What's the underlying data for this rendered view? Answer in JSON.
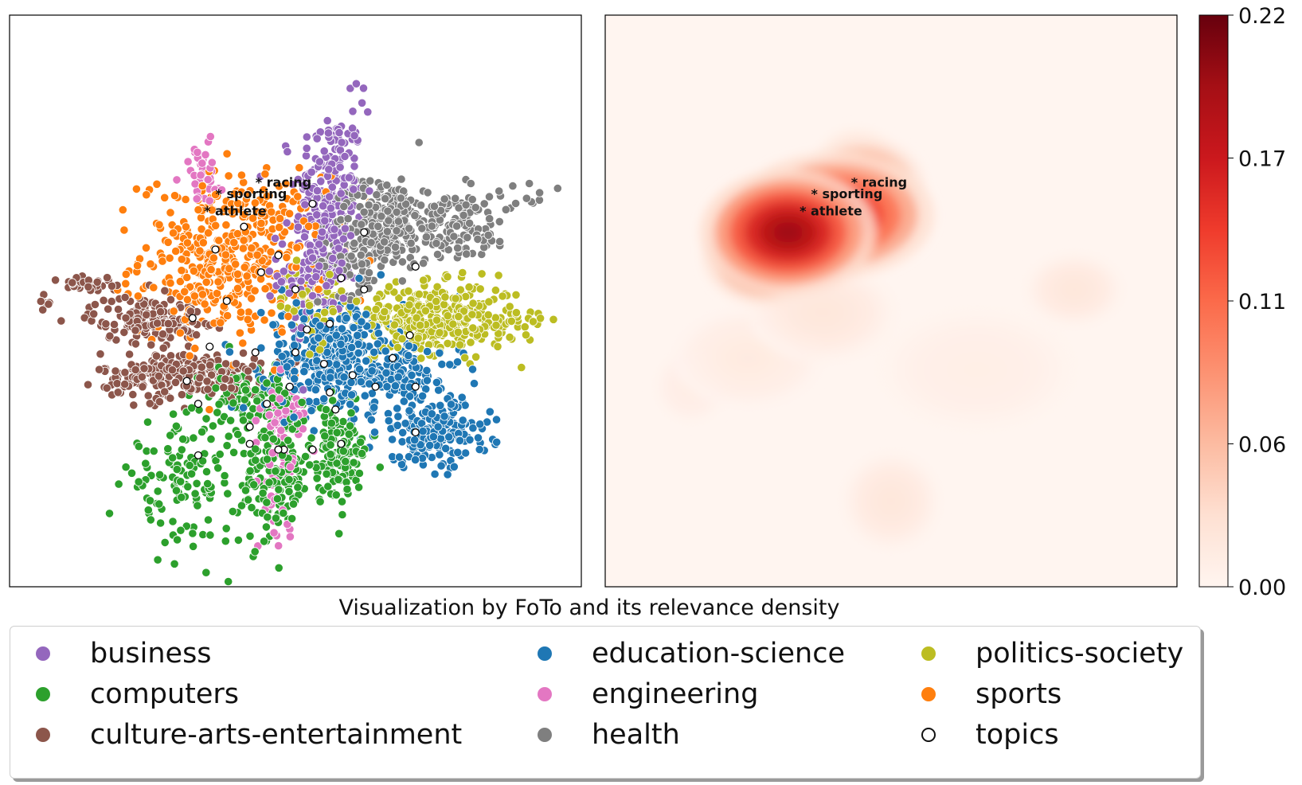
{
  "caption": "Visualization by FoTo and its relevance density",
  "legend": [
    {
      "label": "business",
      "color": "#9467bd",
      "hollow": false
    },
    {
      "label": "computers",
      "color": "#2ca02c",
      "hollow": false
    },
    {
      "label": "culture-arts-entertainment",
      "color": "#8c564b",
      "hollow": false
    },
    {
      "label": "education-science",
      "color": "#1f77b4",
      "hollow": false
    },
    {
      "label": "engineering",
      "color": "#e377c2",
      "hollow": false
    },
    {
      "label": "health",
      "color": "#7f7f7f",
      "hollow": false
    },
    {
      "label": "politics-society",
      "color": "#bcbd22",
      "hollow": false
    },
    {
      "label": "sports",
      "color": "#ff7f0e",
      "hollow": false
    },
    {
      "label": "topics",
      "color": "#ffffff",
      "hollow": true
    }
  ],
  "chart_data": [
    {
      "type": "scatter",
      "title": "",
      "xlabel": "",
      "ylabel": "",
      "axes_visible": false,
      "xlim": [
        0,
        100
      ],
      "ylim": [
        0,
        100
      ],
      "clusters": [
        {
          "name": "business",
          "color": "#9467bd",
          "points": [
            [
              56,
              68,
              3,
              8,
              220
            ],
            [
              53,
              55,
              3,
              5,
              120
            ],
            [
              62,
              86,
              1.5,
              2,
              6
            ]
          ]
        },
        {
          "name": "sports",
          "color": "#ff7f0e",
          "points": [
            [
              39,
              58,
              8,
              7,
              420
            ],
            [
              33,
              51,
              2,
              3,
              30
            ]
          ]
        },
        {
          "name": "health",
          "color": "#7f7f7f",
          "points": [
            [
              65,
              64,
              4,
              4,
              200
            ],
            [
              76,
              63,
              6,
              3,
              160
            ],
            [
              60,
              57,
              3,
              3,
              80
            ],
            [
              88,
              68,
              4,
              2,
              20
            ]
          ]
        },
        {
          "name": "politics-society",
          "color": "#bcbd22",
          "points": [
            [
              75,
              47,
              7,
              3,
              360
            ],
            [
              53,
              50,
              3,
              3,
              60
            ],
            [
              89,
              46,
              2,
              1,
              12
            ]
          ]
        },
        {
          "name": "culture-arts-entertainment",
          "color": "#8c564b",
          "points": [
            [
              24,
              47,
              5,
              2,
              140
            ],
            [
              14,
              53,
              3,
              1,
              30
            ],
            [
              30,
              37,
              7,
              2,
              260
            ],
            [
              6,
              50,
              1,
              1,
              6
            ]
          ]
        },
        {
          "name": "education-science",
          "color": "#1f77b4",
          "points": [
            [
              57,
              40,
              6,
              5,
              360
            ],
            [
              74,
              27,
              5,
              3,
              200
            ],
            [
              69,
              37,
              5,
              2,
              100
            ]
          ]
        },
        {
          "name": "computers",
          "color": "#2ca02c",
          "points": [
            [
              30,
              18,
              5,
              5,
              120
            ],
            [
              46,
              19,
              3,
              6,
              160
            ],
            [
              57,
              23,
              3,
              4,
              150
            ],
            [
              42,
              33,
              4,
              3,
              100
            ]
          ]
        },
        {
          "name": "engineering",
          "color": "#e377c2",
          "points": [
            [
              48,
              30,
              2,
              3,
              60
            ],
            [
              47,
              17,
              1.5,
              4,
              40
            ],
            [
              33,
              73,
              2,
              3,
              40
            ]
          ]
        }
      ],
      "topics": [
        [
          41,
          63
        ],
        [
          53,
          67
        ],
        [
          50,
          52
        ],
        [
          36,
          59
        ],
        [
          47,
          58
        ],
        [
          58,
          54
        ],
        [
          62,
          62
        ],
        [
          71,
          56
        ],
        [
          44,
          55
        ],
        [
          38,
          50
        ],
        [
          32,
          47
        ],
        [
          52,
          45
        ],
        [
          56,
          46
        ],
        [
          62,
          52
        ],
        [
          70,
          44
        ],
        [
          35,
          42
        ],
        [
          43,
          41
        ],
        [
          50,
          41
        ],
        [
          55,
          39
        ],
        [
          60,
          37
        ],
        [
          67,
          40
        ],
        [
          49,
          35
        ],
        [
          31,
          36
        ],
        [
          33,
          32
        ],
        [
          45,
          32
        ],
        [
          56,
          34
        ],
        [
          64,
          35
        ],
        [
          71,
          35
        ],
        [
          42,
          28
        ],
        [
          48,
          24
        ],
        [
          57,
          31
        ],
        [
          71,
          27
        ],
        [
          42,
          25
        ],
        [
          33,
          23
        ],
        [
          47,
          24
        ],
        [
          53,
          24
        ],
        [
          58,
          25
        ]
      ],
      "annotations": [
        {
          "text": "* racing",
          "x": 43,
          "y": 70
        },
        {
          "text": "* sporting",
          "x": 36,
          "y": 68
        },
        {
          "text": "* athlete",
          "x": 34,
          "y": 65
        }
      ]
    },
    {
      "type": "heatmap",
      "title": "",
      "axes_visible": false,
      "colormap": "Reds",
      "colorbar": {
        "min": 0.0,
        "max": 0.22,
        "ticks": [
          "0.00",
          "0.06",
          "0.11",
          "0.17",
          "0.22"
        ]
      },
      "blobs": [
        {
          "x": 32,
          "y": 62,
          "sx": 7,
          "sy": 5,
          "value": 0.2
        },
        {
          "x": 40,
          "y": 65,
          "sx": 8,
          "sy": 5,
          "value": 0.17
        },
        {
          "x": 28,
          "y": 58,
          "sx": 5,
          "sy": 4,
          "value": 0.13
        },
        {
          "x": 45,
          "y": 70,
          "sx": 5,
          "sy": 4,
          "value": 0.1
        },
        {
          "x": 44,
          "y": 76,
          "sx": 3,
          "sy": 2,
          "value": 0.03
        },
        {
          "x": 38,
          "y": 48,
          "sx": 6,
          "sy": 4,
          "value": 0.02
        },
        {
          "x": 82,
          "y": 52,
          "sx": 4,
          "sy": 3,
          "value": 0.02
        },
        {
          "x": 25,
          "y": 40,
          "sx": 6,
          "sy": 4,
          "value": 0.015
        },
        {
          "x": 50,
          "y": 15,
          "sx": 4,
          "sy": 4,
          "value": 0.02
        },
        {
          "x": 15,
          "y": 35,
          "sx": 3,
          "sy": 3,
          "value": 0.012
        },
        {
          "x": 65,
          "y": 38,
          "sx": 8,
          "sy": 5,
          "value": 0.01
        }
      ],
      "annotations": [
        {
          "text": "* racing",
          "x": 43,
          "y": 70
        },
        {
          "text": "* sporting",
          "x": 36,
          "y": 68
        },
        {
          "text": "* athlete",
          "x": 34,
          "y": 65
        }
      ]
    }
  ]
}
